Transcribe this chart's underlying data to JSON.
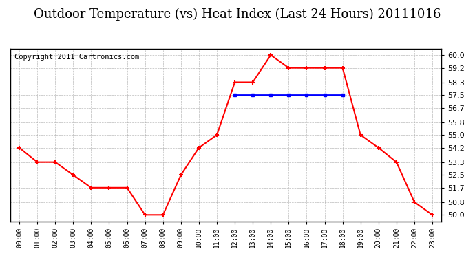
{
  "title": "Outdoor Temperature (vs) Heat Index (Last 24 Hours) 20111016",
  "copyright": "Copyright 2011 Cartronics.com",
  "hours": [
    "00:00",
    "01:00",
    "02:00",
    "03:00",
    "04:00",
    "05:00",
    "06:00",
    "07:00",
    "08:00",
    "09:00",
    "10:00",
    "11:00",
    "12:00",
    "13:00",
    "14:00",
    "15:00",
    "16:00",
    "17:00",
    "18:00",
    "19:00",
    "20:00",
    "21:00",
    "22:00",
    "23:00"
  ],
  "temp": [
    54.2,
    53.3,
    53.3,
    52.5,
    51.7,
    51.7,
    51.7,
    50.0,
    50.0,
    52.5,
    54.2,
    55.0,
    58.3,
    58.3,
    60.0,
    59.2,
    59.2,
    59.2,
    59.2,
    55.0,
    54.2,
    53.3,
    50.8,
    50.0
  ],
  "heat_index": [
    null,
    null,
    null,
    null,
    null,
    null,
    null,
    null,
    null,
    null,
    null,
    null,
    57.5,
    57.5,
    57.5,
    57.5,
    57.5,
    57.5,
    57.5,
    null,
    null,
    null,
    null,
    null
  ],
  "temp_color": "#ff0000",
  "heat_color": "#0000ff",
  "bg_color": "#ffffff",
  "grid_color": "#aaaaaa",
  "ylim_min": 49.6,
  "ylim_max": 60.4,
  "yticks": [
    50.0,
    50.8,
    51.7,
    52.5,
    53.3,
    54.2,
    55.0,
    55.8,
    56.7,
    57.5,
    58.3,
    59.2,
    60.0
  ],
  "title_fontsize": 13,
  "copyright_fontsize": 7.5
}
